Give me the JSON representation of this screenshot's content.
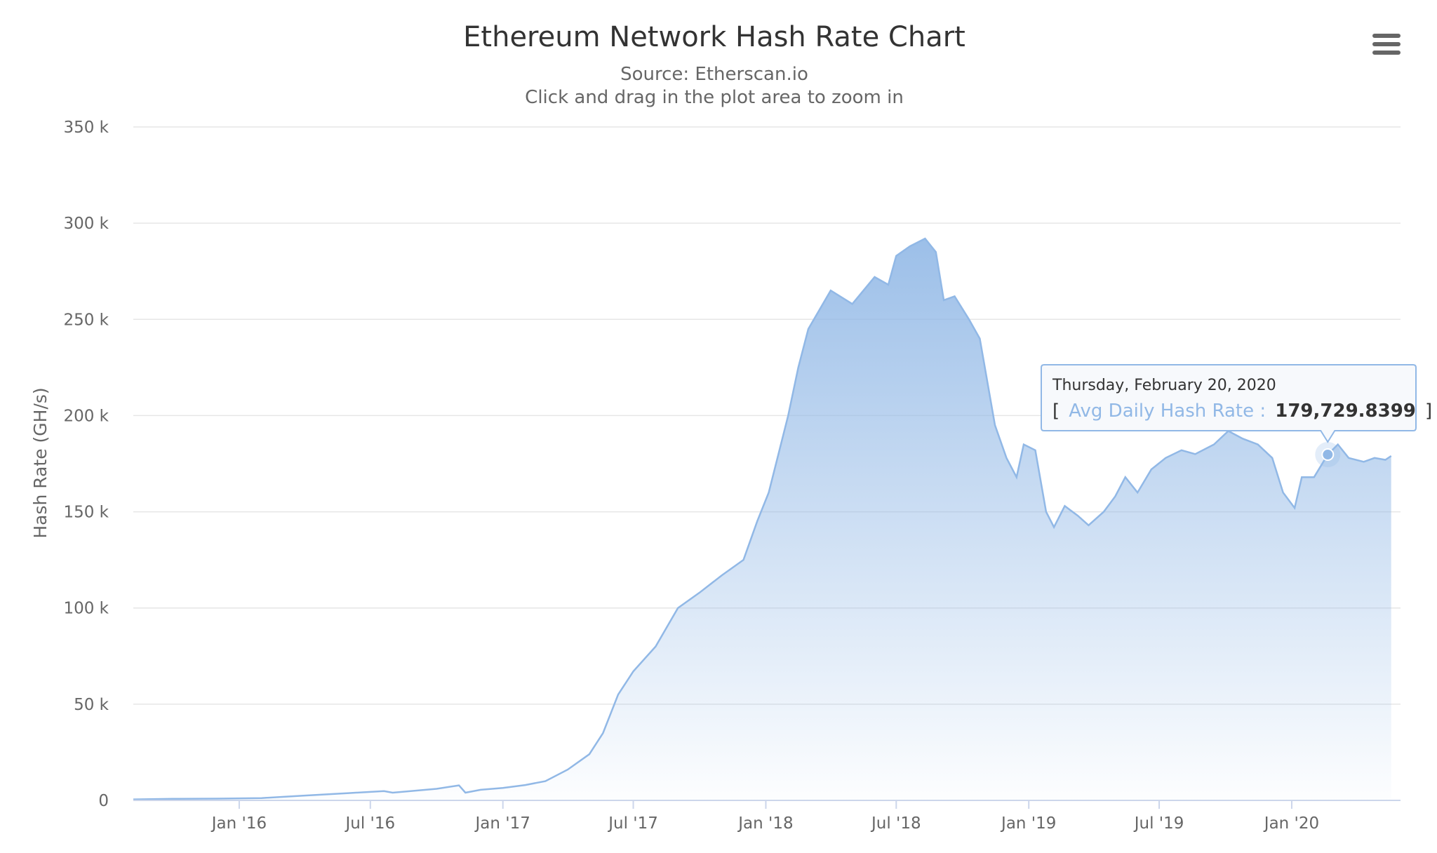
{
  "chart_data": {
    "type": "area",
    "title": "Ethereum Network Hash Rate Chart",
    "subtitle_lines": [
      "Source: Etherscan.io",
      "Click and drag in the plot area to zoom in"
    ],
    "ylabel": "Hash Rate (GH/s)",
    "xlabel": "",
    "ylim": [
      0,
      350000
    ],
    "y_ticks": [
      0,
      50000,
      100000,
      150000,
      200000,
      250000,
      300000,
      350000
    ],
    "y_tick_labels": [
      "0",
      "50 k",
      "100 k",
      "150 k",
      "200 k",
      "250 k",
      "300 k",
      "350 k"
    ],
    "x_ticks": [
      "2016-01-01",
      "2016-07-01",
      "2017-01-01",
      "2017-07-01",
      "2018-01-01",
      "2018-07-01",
      "2019-01-01",
      "2019-07-01",
      "2020-01-01"
    ],
    "x_tick_labels": [
      "Jan '16",
      "Jul '16",
      "Jan '17",
      "Jul '17",
      "Jan '18",
      "Jul '18",
      "Jan '19",
      "Jul '19",
      "Jan '20"
    ],
    "xlim": [
      "2015-08-07",
      "2020-05-31"
    ],
    "grid": true,
    "legend": "none",
    "series_color": "#91b8e6",
    "series": [
      {
        "name": "Avg Daily Hash Rate",
        "points": [
          [
            "2015-08-07",
            500
          ],
          [
            "2015-10-01",
            800
          ],
          [
            "2015-12-01",
            900
          ],
          [
            "2016-02-01",
            1200
          ],
          [
            "2016-04-01",
            2500
          ],
          [
            "2016-06-01",
            3800
          ],
          [
            "2016-07-20",
            4800
          ],
          [
            "2016-08-01",
            4000
          ],
          [
            "2016-10-01",
            6000
          ],
          [
            "2016-11-01",
            7800
          ],
          [
            "2016-11-10",
            4000
          ],
          [
            "2016-12-01",
            5500
          ],
          [
            "2017-01-01",
            6500
          ],
          [
            "2017-02-01",
            8000
          ],
          [
            "2017-03-01",
            10000
          ],
          [
            "2017-04-01",
            16000
          ],
          [
            "2017-05-01",
            24000
          ],
          [
            "2017-05-20",
            35000
          ],
          [
            "2017-06-10",
            55000
          ],
          [
            "2017-07-01",
            67000
          ],
          [
            "2017-08-01",
            80000
          ],
          [
            "2017-09-01",
            100000
          ],
          [
            "2017-10-01",
            108000
          ],
          [
            "2017-11-01",
            117000
          ],
          [
            "2017-12-01",
            125000
          ],
          [
            "2017-12-20",
            145000
          ],
          [
            "2018-01-05",
            160000
          ],
          [
            "2018-02-01",
            200000
          ],
          [
            "2018-02-15",
            225000
          ],
          [
            "2018-03-01",
            245000
          ],
          [
            "2018-04-01",
            265000
          ],
          [
            "2018-05-01",
            258000
          ],
          [
            "2018-06-01",
            272000
          ],
          [
            "2018-06-20",
            268000
          ],
          [
            "2018-07-01",
            283000
          ],
          [
            "2018-07-20",
            288000
          ],
          [
            "2018-08-10",
            292000
          ],
          [
            "2018-08-25",
            285000
          ],
          [
            "2018-09-05",
            260000
          ],
          [
            "2018-09-20",
            262000
          ],
          [
            "2018-10-10",
            250000
          ],
          [
            "2018-10-25",
            240000
          ],
          [
            "2018-11-15",
            195000
          ],
          [
            "2018-12-01",
            178000
          ],
          [
            "2018-12-15",
            168000
          ],
          [
            "2018-12-25",
            185000
          ],
          [
            "2019-01-10",
            182000
          ],
          [
            "2019-01-25",
            150000
          ],
          [
            "2019-02-05",
            142000
          ],
          [
            "2019-02-20",
            153000
          ],
          [
            "2019-03-10",
            148000
          ],
          [
            "2019-03-25",
            143000
          ],
          [
            "2019-04-15",
            150000
          ],
          [
            "2019-05-01",
            158000
          ],
          [
            "2019-05-15",
            168000
          ],
          [
            "2019-06-01",
            160000
          ],
          [
            "2019-06-20",
            172000
          ],
          [
            "2019-07-10",
            178000
          ],
          [
            "2019-08-01",
            182000
          ],
          [
            "2019-08-20",
            180000
          ],
          [
            "2019-09-15",
            185000
          ],
          [
            "2019-10-05",
            192000
          ],
          [
            "2019-10-25",
            188000
          ],
          [
            "2019-11-15",
            185000
          ],
          [
            "2019-12-05",
            178000
          ],
          [
            "2019-12-20",
            160000
          ],
          [
            "2020-01-05",
            152000
          ],
          [
            "2020-01-15",
            168000
          ],
          [
            "2020-02-01",
            168000
          ],
          [
            "2020-02-20",
            179729.8399
          ],
          [
            "2020-03-05",
            185000
          ],
          [
            "2020-03-20",
            178000
          ],
          [
            "2020-04-10",
            176000
          ],
          [
            "2020-04-25",
            178000
          ],
          [
            "2020-05-10",
            177000
          ],
          [
            "2020-05-18",
            179000
          ]
        ]
      }
    ],
    "tooltip": {
      "date_text": "Thursday, February 20, 2020",
      "open": "[",
      "series_text": "Avg Daily Hash Rate :",
      "value_text": "179,729.8399",
      "close": "]",
      "x": "2020-02-20",
      "y": 179729.8399
    }
  },
  "toolbar": {
    "menu_icon": "hamburger-menu-icon"
  }
}
